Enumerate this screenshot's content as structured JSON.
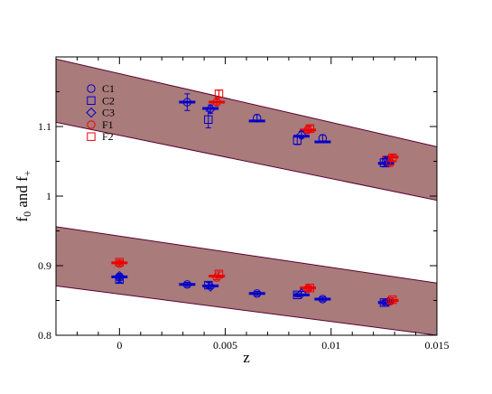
{
  "chart_data": {
    "type": "scatter",
    "xlabel": "z",
    "ylabel_main": "f",
    "ylabel_sub0": "0",
    "ylabel_mid": " and f",
    "ylabel_sub1": "+",
    "xlim": [
      -0.003,
      0.015
    ],
    "ylim": [
      0.8,
      1.2
    ],
    "xticks": [
      0,
      0.005,
      0.01,
      0.015
    ],
    "xtick_labels": [
      "0",
      "0.005",
      "0.01",
      "0.015"
    ],
    "yticks": [
      0.8,
      0.9,
      1.0,
      1.1
    ],
    "ytick_labels": [
      "0.8",
      "0.9",
      "1",
      "1.1"
    ],
    "grid": false,
    "legend_position": "upper-left",
    "colors": {
      "blue": "#0000cc",
      "red": "#ee0000",
      "band": "#a97b7b",
      "band_edge": "#5a0033"
    },
    "bands": [
      {
        "upper": [
          [
            -0.003,
            1.197
          ],
          [
            0.015,
            1.071
          ]
        ],
        "lower": [
          [
            -0.003,
            1.106
          ],
          [
            0.015,
            0.994
          ]
        ]
      },
      {
        "upper": [
          [
            -0.003,
            0.956
          ],
          [
            0.015,
            0.875
          ]
        ],
        "lower": [
          [
            -0.003,
            0.871
          ],
          [
            0.015,
            0.8
          ]
        ]
      }
    ],
    "series": [
      {
        "name": "C1",
        "marker": "circle",
        "color": "blue",
        "points": [
          [
            0.0032,
            1.135,
            0.012
          ],
          [
            0.0065,
            1.112,
            0.005
          ],
          [
            0.0096,
            1.083,
            0.005
          ],
          [
            0.0126,
            1.05,
            0.007
          ],
          [
            0.0,
            0.883,
            0.004
          ],
          [
            0.0032,
            0.873,
            0.003
          ],
          [
            0.0065,
            0.86,
            0.003
          ],
          [
            0.0096,
            0.852,
            0.003
          ],
          [
            0.0126,
            0.847,
            0.003
          ]
        ]
      },
      {
        "name": "C2",
        "marker": "square",
        "color": "blue",
        "points": [
          [
            0.0042,
            1.11,
            0.012
          ],
          [
            0.0084,
            1.08,
            0.006
          ],
          [
            0.0125,
            1.048,
            0.006
          ],
          [
            0.0,
            0.88,
            0.004
          ],
          [
            0.0042,
            0.872,
            0.004
          ],
          [
            0.0084,
            0.858,
            0.003
          ],
          [
            0.0125,
            0.847,
            0.003
          ]
        ]
      },
      {
        "name": "C3",
        "marker": "diamond",
        "color": "blue",
        "points": [
          [
            0.0043,
            1.125,
            0.006
          ],
          [
            0.0086,
            1.088,
            0.005
          ],
          [
            0.0127,
            1.048,
            0.005
          ],
          [
            0.0,
            0.885,
            0.004
          ],
          [
            0.0043,
            0.87,
            0.003
          ],
          [
            0.0086,
            0.86,
            0.003
          ],
          [
            0.0127,
            0.848,
            0.003
          ]
        ]
      },
      {
        "name": "F1",
        "marker": "circle",
        "color": "red",
        "points": [
          [
            0.0046,
            1.135,
            0.004
          ],
          [
            0.0089,
            1.095,
            0.004
          ],
          [
            0.0128,
            1.048,
            0.005
          ],
          [
            0.0,
            0.903,
            0.003
          ],
          [
            0.0046,
            0.883,
            0.003
          ],
          [
            0.0089,
            0.867,
            0.003
          ],
          [
            0.0128,
            0.849,
            0.003
          ]
        ]
      },
      {
        "name": "F2",
        "marker": "square",
        "color": "red",
        "points": [
          [
            0.0047,
            1.147,
            0.005
          ],
          [
            0.009,
            1.097,
            0.004
          ],
          [
            0.0129,
            1.055,
            0.004
          ],
          [
            0.0,
            0.905,
            0.003
          ],
          [
            0.0047,
            0.888,
            0.003
          ],
          [
            0.009,
            0.868,
            0.003
          ],
          [
            0.0129,
            0.851,
            0.003
          ]
        ]
      }
    ],
    "central_values": [
      {
        "color": "blue",
        "values": [
          [
            0.0032,
            1.135
          ],
          [
            0.0043,
            1.126
          ],
          [
            0.0065,
            1.108
          ],
          [
            0.0086,
            1.086
          ],
          [
            0.0096,
            1.078
          ],
          [
            0.0126,
            1.047
          ],
          [
            0.0,
            0.884
          ],
          [
            0.0032,
            0.873
          ],
          [
            0.0043,
            0.871
          ],
          [
            0.0065,
            0.86
          ],
          [
            0.0086,
            0.858
          ],
          [
            0.0096,
            0.852
          ],
          [
            0.0126,
            0.847
          ]
        ]
      },
      {
        "color": "red",
        "values": [
          [
            0.0046,
            1.135
          ],
          [
            0.0089,
            1.095
          ],
          [
            0.0128,
            1.056
          ],
          [
            0.0,
            0.904
          ],
          [
            0.0046,
            0.885
          ],
          [
            0.0089,
            0.868
          ],
          [
            0.0128,
            0.85
          ]
        ]
      }
    ]
  }
}
